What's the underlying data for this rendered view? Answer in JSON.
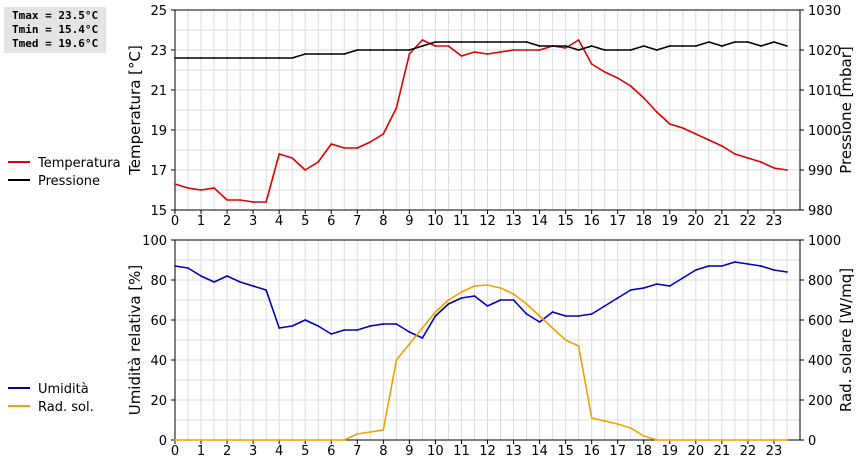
{
  "stats": {
    "tmax": "Tmax = 23.5°C",
    "tmin": "Tmin = 15.4°C",
    "tmed": "Tmed = 19.6°C"
  },
  "chart_data": [
    {
      "type": "line",
      "xlim": [
        0,
        24
      ],
      "x_ticks": [
        0,
        1,
        2,
        3,
        4,
        5,
        6,
        7,
        8,
        9,
        10,
        11,
        12,
        13,
        14,
        15,
        16,
        17,
        18,
        19,
        20,
        21,
        22,
        23
      ],
      "grid": true,
      "legend_placement": "left",
      "left_axis": {
        "label": "Temperatura [°C]",
        "ylim": [
          15,
          25
        ],
        "ticks": [
          15,
          17,
          19,
          21,
          23,
          25
        ]
      },
      "right_axis": {
        "label": "Pressione [mbar]",
        "ylim": [
          980,
          1030
        ],
        "ticks": [
          980,
          990,
          1000,
          1010,
          1020,
          1030
        ]
      },
      "series": [
        {
          "name": "Temperatura",
          "axis": "left",
          "color": "#e00000",
          "x": [
            0,
            0.5,
            1,
            1.5,
            2,
            2.5,
            3,
            3.5,
            4,
            4.5,
            5,
            5.5,
            6,
            6.5,
            7,
            7.5,
            8,
            8.5,
            9,
            9.5,
            10,
            10.5,
            11,
            11.5,
            12,
            12.5,
            13,
            13.5,
            14,
            14.5,
            15,
            15.5,
            16,
            16.5,
            17,
            17.5,
            18,
            18.5,
            19,
            19.5,
            20,
            20.5,
            21,
            21.5,
            22,
            22.5,
            23,
            23.5
          ],
          "y": [
            16.3,
            16.1,
            16.0,
            16.1,
            15.5,
            15.5,
            15.4,
            15.4,
            17.8,
            17.6,
            17.0,
            17.4,
            18.3,
            18.1,
            18.1,
            18.4,
            18.8,
            20.1,
            22.8,
            23.5,
            23.2,
            23.2,
            22.7,
            22.9,
            22.8,
            22.9,
            23.0,
            23.0,
            23.0,
            23.2,
            23.1,
            23.5,
            22.3,
            21.9,
            21.6,
            21.2,
            20.6,
            19.9,
            19.3,
            19.1,
            18.8,
            18.5,
            18.2,
            17.8,
            17.6,
            17.4,
            17.1,
            17.0
          ]
        },
        {
          "name": "Pressione",
          "axis": "right",
          "color": "#000000",
          "x": [
            0,
            0.5,
            1,
            1.5,
            2,
            2.5,
            3,
            3.5,
            4,
            4.5,
            5,
            5.5,
            6,
            6.5,
            7,
            7.5,
            8,
            8.5,
            9,
            9.5,
            10,
            10.5,
            11,
            11.5,
            12,
            12.5,
            13,
            13.5,
            14,
            14.5,
            15,
            15.5,
            16,
            16.5,
            17,
            17.5,
            18,
            18.5,
            19,
            19.5,
            20,
            20.5,
            21,
            21.5,
            22,
            22.5,
            23,
            23.5
          ],
          "y": [
            1018,
            1018,
            1018,
            1018,
            1018,
            1018,
            1018,
            1018,
            1018,
            1018,
            1019,
            1019,
            1019,
            1019,
            1020,
            1020,
            1020,
            1020,
            1020,
            1021,
            1022,
            1022,
            1022,
            1022,
            1022,
            1022,
            1022,
            1022,
            1021,
            1021,
            1021,
            1020,
            1021,
            1020,
            1020,
            1020,
            1021,
            1020,
            1021,
            1021,
            1021,
            1022,
            1021,
            1022,
            1022,
            1021,
            1022,
            1021
          ]
        }
      ]
    },
    {
      "type": "line",
      "xlim": [
        0,
        24
      ],
      "x_ticks": [
        0,
        1,
        2,
        3,
        4,
        5,
        6,
        7,
        8,
        9,
        10,
        11,
        12,
        13,
        14,
        15,
        16,
        17,
        18,
        19,
        20,
        21,
        22,
        23
      ],
      "grid": true,
      "legend_placement": "left",
      "left_axis": {
        "label": "Umidità relativa [%]",
        "ylim": [
          0,
          100
        ],
        "ticks": [
          0,
          20,
          40,
          60,
          80,
          100
        ]
      },
      "right_axis": {
        "label": "Rad. solare [W/mq]",
        "ylim": [
          0,
          1000
        ],
        "ticks": [
          0,
          200,
          400,
          600,
          800,
          1000
        ]
      },
      "series": [
        {
          "name": "Umidità",
          "axis": "left",
          "color": "#0000c0",
          "x": [
            0,
            0.5,
            1,
            1.5,
            2,
            2.5,
            3,
            3.5,
            4,
            4.5,
            5,
            5.5,
            6,
            6.5,
            7,
            7.5,
            8,
            8.5,
            9,
            9.5,
            10,
            10.5,
            11,
            11.5,
            12,
            12.5,
            13,
            13.5,
            14,
            14.5,
            15,
            15.5,
            16,
            16.5,
            17,
            17.5,
            18,
            18.5,
            19,
            19.5,
            20,
            20.5,
            21,
            21.5,
            22,
            22.5,
            23,
            23.5
          ],
          "y": [
            87,
            86,
            82,
            79,
            82,
            79,
            77,
            75,
            56,
            57,
            60,
            57,
            53,
            55,
            55,
            57,
            58,
            58,
            54,
            51,
            62,
            68,
            71,
            72,
            67,
            70,
            70,
            63,
            59,
            64,
            62,
            62,
            63,
            67,
            71,
            75,
            76,
            78,
            77,
            81,
            85,
            87,
            87,
            89,
            88,
            87,
            85,
            84
          ]
        },
        {
          "name": "Rad. sol.",
          "axis": "right",
          "color": "#f0a000",
          "x": [
            0,
            0.5,
            1,
            1.5,
            2,
            2.5,
            3,
            3.5,
            4,
            4.5,
            5,
            5.5,
            6,
            6.5,
            7,
            7.5,
            8,
            8.5,
            9,
            9.5,
            10,
            10.5,
            11,
            11.5,
            12,
            12.5,
            13,
            13.5,
            14,
            14.5,
            15,
            15.5,
            16,
            16.5,
            17,
            17.5,
            18,
            18.5,
            19,
            19.5,
            20,
            20.5,
            21,
            21.5,
            22,
            22.5,
            23,
            23.5
          ],
          "y": [
            0,
            0,
            0,
            0,
            0,
            0,
            0,
            0,
            0,
            0,
            0,
            0,
            0,
            0,
            30,
            40,
            50,
            400,
            480,
            560,
            640,
            700,
            740,
            770,
            775,
            760,
            730,
            680,
            620,
            560,
            500,
            470,
            110,
            95,
            80,
            60,
            20,
            0,
            0,
            0,
            0,
            0,
            0,
            0,
            0,
            0,
            0,
            0
          ]
        }
      ]
    }
  ]
}
